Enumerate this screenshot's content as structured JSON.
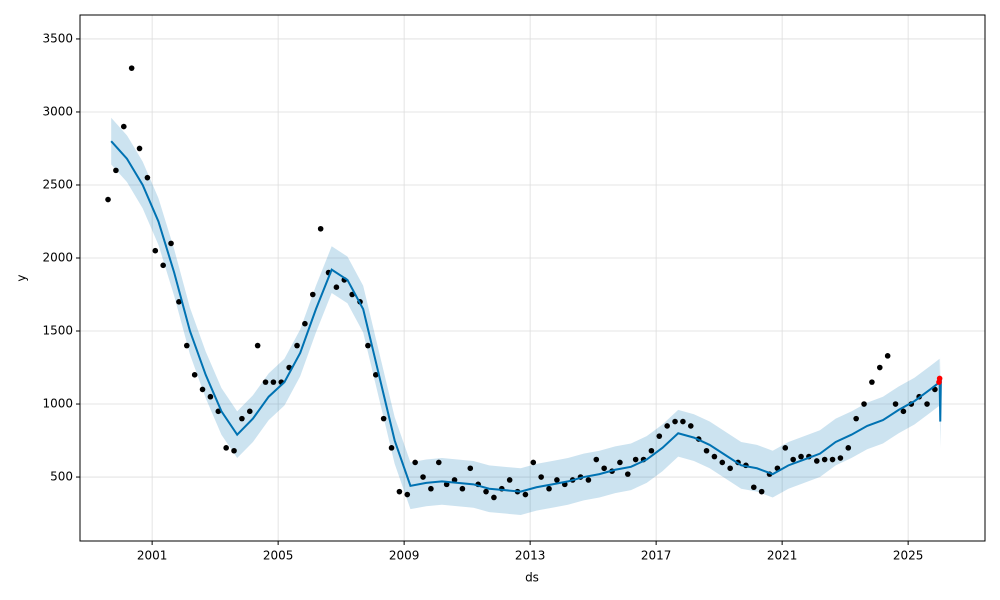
{
  "chart_data": {
    "type": "line",
    "xlabel": "ds",
    "ylabel": "y",
    "xlim": [
      1998.71,
      2027.44
    ],
    "ylim": [
      62,
      3664
    ],
    "xticks": [
      2001,
      2005,
      2009,
      2013,
      2017,
      2021,
      2025
    ],
    "yticks": [
      500,
      1000,
      1500,
      2000,
      2500,
      3000,
      3500
    ],
    "grid": true,
    "series": [
      {
        "type": "band",
        "color": "#0072B2",
        "x": [
          1999.7,
          2000.2,
          2000.7,
          2001.2,
          2001.7,
          2002.2,
          2002.7,
          2003.2,
          2003.7,
          2004.2,
          2004.7,
          2005.2,
          2005.7,
          2006.2,
          2006.7,
          2007.2,
          2007.7,
          2008.2,
          2008.7,
          2009.2,
          2009.7,
          2010.2,
          2010.7,
          2011.2,
          2011.7,
          2012.2,
          2012.7,
          2013.2,
          2013.7,
          2014.2,
          2014.7,
          2015.2,
          2015.7,
          2016.2,
          2016.7,
          2017.2,
          2017.7,
          2018.2,
          2018.7,
          2019.2,
          2019.7,
          2020.2,
          2020.7,
          2021.2,
          2021.7,
          2022.2,
          2022.7,
          2023.2,
          2023.7,
          2024.2,
          2024.7,
          2025.2,
          2025.7,
          2026.0,
          2026.02,
          2026.04
        ],
        "lower": [
          2640,
          2520,
          2340,
          2090,
          1740,
          1340,
          1040,
          790,
          630,
          740,
          890,
          990,
          1190,
          1490,
          1760,
          1690,
          1490,
          1040,
          590,
          280,
          300,
          310,
          300,
          290,
          260,
          250,
          240,
          270,
          290,
          310,
          340,
          360,
          390,
          410,
          460,
          540,
          640,
          610,
          560,
          490,
          420,
          400,
          360,
          420,
          460,
          500,
          580,
          630,
          690,
          730,
          800,
          860,
          940,
          990,
          700,
          1000
        ],
        "upper": [
          2960,
          2840,
          2660,
          2410,
          2060,
          1660,
          1360,
          1110,
          950,
          1060,
          1210,
          1310,
          1510,
          1810,
          2080,
          2010,
          1810,
          1360,
          910,
          600,
          620,
          630,
          620,
          610,
          580,
          570,
          560,
          590,
          610,
          630,
          660,
          680,
          710,
          730,
          780,
          860,
          960,
          930,
          880,
          810,
          740,
          720,
          680,
          740,
          780,
          820,
          900,
          950,
          1010,
          1050,
          1120,
          1180,
          1260,
          1310,
          1040,
          1330
        ]
      },
      {
        "type": "scatter",
        "color": "#000000",
        "x": [
          1999.6,
          1999.85,
          2000.1,
          2000.35,
          2000.6,
          2000.85,
          2001.1,
          2001.35,
          2001.6,
          2001.85,
          2002.1,
          2002.35,
          2002.6,
          2002.85,
          2003.1,
          2003.35,
          2003.6,
          2003.85,
          2004.1,
          2004.35,
          2004.6,
          2004.85,
          2005.1,
          2005.35,
          2005.6,
          2005.85,
          2006.1,
          2006.35,
          2006.6,
          2006.85,
          2007.1,
          2007.35,
          2007.6,
          2007.85,
          2008.1,
          2008.35,
          2008.6,
          2008.85,
          2009.1,
          2009.35,
          2009.6,
          2009.85,
          2010.1,
          2010.35,
          2010.6,
          2010.85,
          2011.1,
          2011.35,
          2011.6,
          2011.85,
          2012.1,
          2012.35,
          2012.6,
          2012.85,
          2013.1,
          2013.35,
          2013.6,
          2013.85,
          2014.1,
          2014.35,
          2014.6,
          2014.85,
          2015.1,
          2015.35,
          2015.6,
          2015.85,
          2016.1,
          2016.35,
          2016.6,
          2016.85,
          2017.1,
          2017.35,
          2017.6,
          2017.85,
          2018.1,
          2018.35,
          2018.6,
          2018.85,
          2019.1,
          2019.35,
          2019.6,
          2019.85,
          2020.1,
          2020.35,
          2020.6,
          2020.85,
          2021.1,
          2021.35,
          2021.6,
          2021.85,
          2022.1,
          2022.35,
          2022.6,
          2022.85,
          2023.1,
          2023.35,
          2023.6,
          2023.85,
          2024.1,
          2024.35,
          2024.6,
          2024.85,
          2025.1,
          2025.35,
          2025.6,
          2025.85
        ],
        "values": [
          2400,
          2600,
          2900,
          3300,
          2750,
          2550,
          2050,
          1950,
          2100,
          1700,
          1400,
          1200,
          1100,
          1050,
          950,
          700,
          680,
          900,
          950,
          1400,
          1150,
          1150,
          1150,
          1250,
          1400,
          1550,
          1750,
          2200,
          1900,
          1800,
          1850,
          1750,
          1700,
          1400,
          1200,
          900,
          700,
          400,
          380,
          600,
          500,
          420,
          600,
          450,
          480,
          420,
          560,
          450,
          400,
          360,
          420,
          480,
          400,
          380,
          600,
          500,
          420,
          480,
          450,
          480,
          500,
          480,
          620,
          560,
          540,
          600,
          520,
          620,
          620,
          680,
          780,
          850,
          880,
          880,
          850,
          760,
          680,
          640,
          600,
          560,
          600,
          580,
          430,
          400,
          520,
          560,
          700,
          620,
          640,
          640,
          610,
          620,
          620,
          630,
          700,
          900,
          1000,
          1150,
          1250,
          1330,
          1000,
          950,
          1000,
          1050,
          1000,
          1100
        ]
      },
      {
        "type": "line",
        "color": "#0072B2",
        "x": [
          1999.7,
          2000.2,
          2000.7,
          2001.2,
          2001.7,
          2002.2,
          2002.7,
          2003.2,
          2003.7,
          2004.2,
          2004.7,
          2005.2,
          2005.7,
          2006.2,
          2006.7,
          2007.2,
          2007.7,
          2008.2,
          2008.7,
          2009.2,
          2009.7,
          2010.2,
          2010.7,
          2011.2,
          2011.7,
          2012.2,
          2012.7,
          2013.2,
          2013.7,
          2014.2,
          2014.7,
          2015.2,
          2015.7,
          2016.2,
          2016.7,
          2017.2,
          2017.7,
          2018.2,
          2018.7,
          2019.2,
          2019.7,
          2020.2,
          2020.7,
          2021.2,
          2021.7,
          2022.2,
          2022.7,
          2023.2,
          2023.7,
          2024.2,
          2024.7,
          2025.2,
          2025.7,
          2026.0,
          2026.02,
          2026.04
        ],
        "values": [
          2800,
          2680,
          2500,
          2250,
          1900,
          1500,
          1200,
          950,
          790,
          900,
          1050,
          1150,
          1350,
          1650,
          1920,
          1850,
          1650,
          1200,
          750,
          440,
          460,
          470,
          460,
          450,
          420,
          410,
          400,
          430,
          450,
          470,
          500,
          520,
          550,
          570,
          620,
          700,
          800,
          770,
          720,
          650,
          580,
          560,
          520,
          580,
          620,
          660,
          740,
          790,
          850,
          890,
          960,
          1020,
          1100,
          1150,
          880,
          1170
        ]
      },
      {
        "type": "scatter",
        "color": "#ff0000",
        "x": [
          2025.98,
          2026.0
        ],
        "values": [
          1150,
          1175
        ]
      }
    ]
  }
}
